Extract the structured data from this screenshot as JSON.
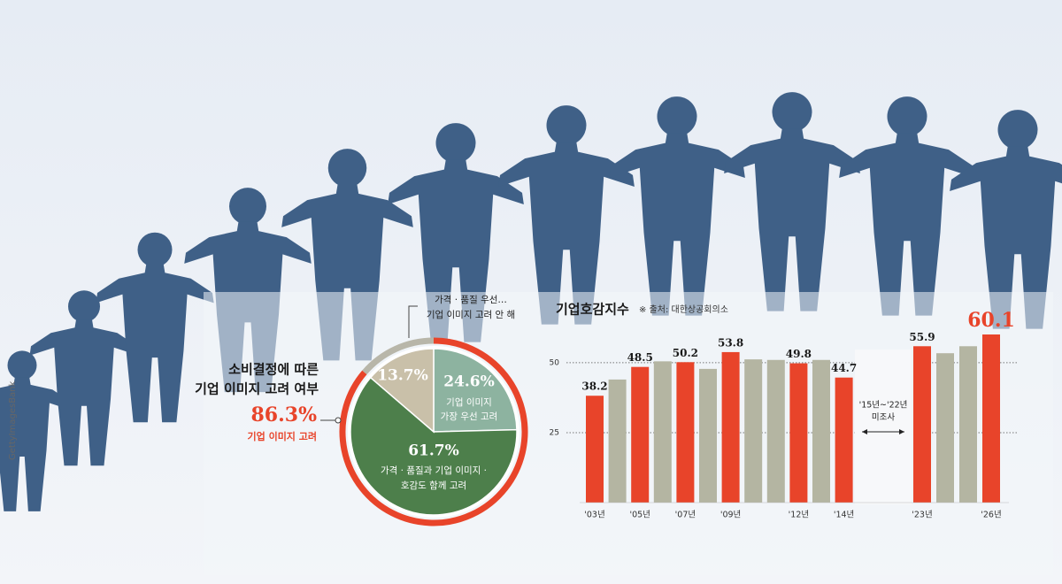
{
  "credit": "GettyImagesBank",
  "chart_data": [
    {
      "type": "pie",
      "title": [
        "소비결정에 따른",
        "기업 이미지 고려 여부"
      ],
      "values": [
        24.6,
        61.7,
        13.7
      ],
      "value_labels": [
        "24.6%",
        "61.7%",
        "13.7%"
      ],
      "labels": [
        [
          "기업 이미지",
          "가장 우선 고려"
        ],
        [
          "가격 · 품질과 기업 이미지 ·",
          "호감도 함께 고려"
        ],
        [
          "가격 · 품질 우선…",
          "기업 이미지 고려 안 해"
        ]
      ],
      "colors": [
        "#8db3a0",
        "#4d7f4b",
        "#c9c0a9"
      ],
      "ring": {
        "values": [
          86.3,
          13.7
        ],
        "value_labels": [
          "86.3%",
          null
        ],
        "label": "기업 이미지 고려",
        "colors": [
          "#e8442a",
          "#b8b6a9"
        ]
      }
    },
    {
      "type": "bar",
      "title": "기업호감지수",
      "source": "※ 출처: 대한상공회의소",
      "categories": [
        "'03년",
        null,
        "'05년",
        null,
        "'07년",
        null,
        "'09년",
        null,
        null,
        "'12년",
        null,
        "'14년",
        "'23년",
        null,
        null,
        "'26년"
      ],
      "values": [
        38.2,
        44,
        48.5,
        50.5,
        50.2,
        47.8,
        53.8,
        51.2,
        51,
        49.8,
        51,
        44.7,
        55.9,
        53.4,
        55.9,
        60.1
      ],
      "value_labels": [
        "38.2",
        null,
        "48.5",
        null,
        "50.2",
        null,
        "53.8",
        null,
        null,
        "49.8",
        null,
        "44.7",
        "55.9",
        null,
        null,
        "60.1"
      ],
      "colors": [
        "#e8442a",
        "#b4b5a2",
        "#e8442a",
        "#b4b5a2",
        "#e8442a",
        "#b4b5a2",
        "#e8442a",
        "#b4b5a2",
        "#b4b5a2",
        "#e8442a",
        "#b4b5a2",
        "#e8442a",
        "#e8442a",
        "#b4b5a2",
        "#b4b5a2",
        "#e8442a"
      ],
      "gap_label": [
        "'15년~'22년",
        "미조사"
      ],
      "ylim": [
        0,
        62
      ],
      "yticks": [
        25,
        50
      ]
    }
  ]
}
